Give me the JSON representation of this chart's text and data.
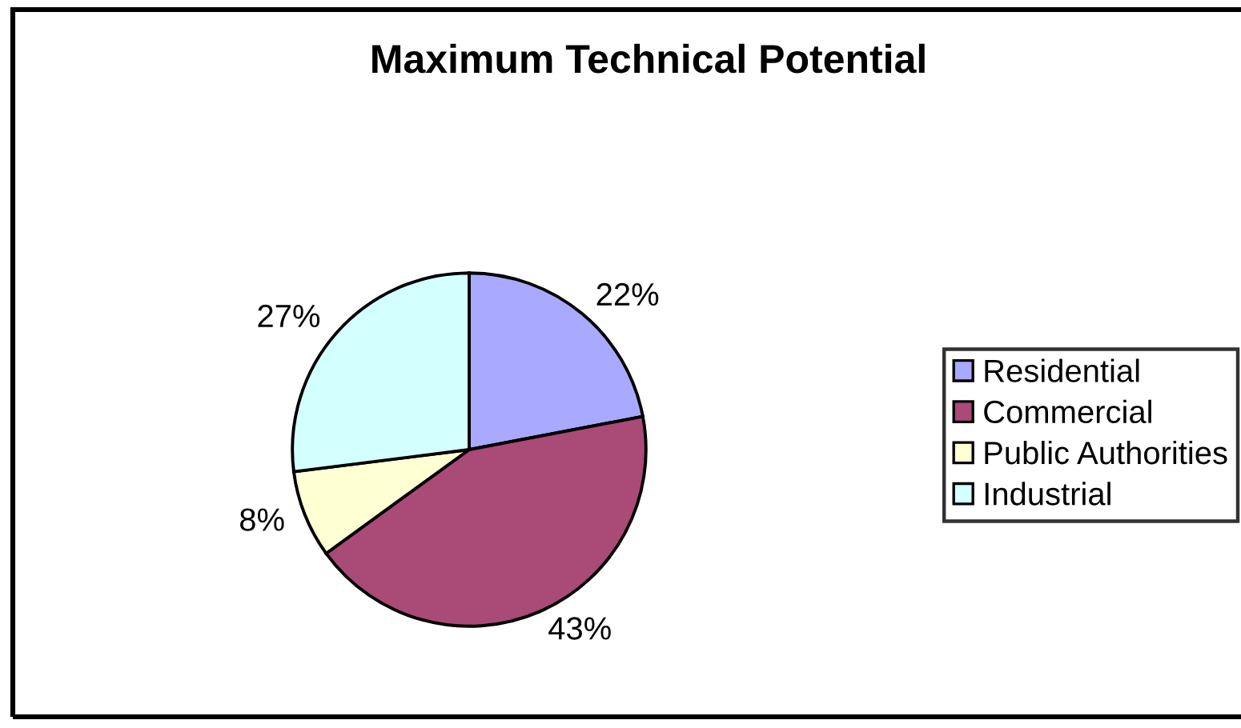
{
  "chart_data": {
    "type": "pie",
    "title": "Maximum Technical Potential",
    "categories": [
      "Residential",
      "Commercial",
      "Public Authorities",
      "Industrial"
    ],
    "values": [
      22,
      43,
      8,
      27
    ],
    "value_labels": [
      "22%",
      "43%",
      "8%",
      "27%"
    ],
    "colors": [
      "#a9a9ff",
      "#aa4a76",
      "#ffffd4",
      "#d4ffff"
    ],
    "legend": "right"
  }
}
